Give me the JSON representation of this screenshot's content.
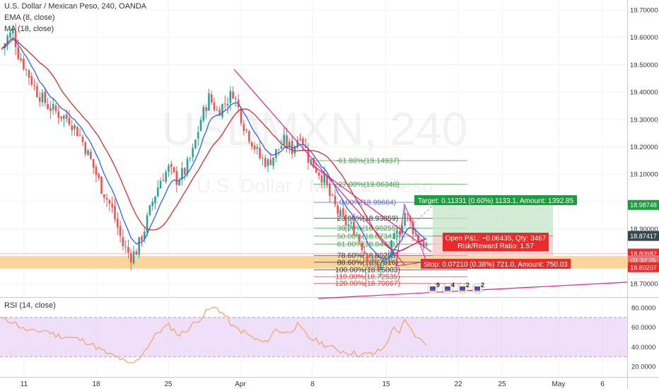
{
  "header": {
    "symbol": "U.S. Dollar / Mexican Peso, 240, OANDA",
    "ema": "EMA (8, close)",
    "ma": "MA (18, close)",
    "rsi": "RSI (14, close)"
  },
  "watermark": {
    "symbol": "USDMXN, 240",
    "name": "U.S. Dollar / Mexican Peso"
  },
  "colors": {
    "up": "#26a69a",
    "down": "#ef5350",
    "ema": "#2962ff",
    "ma": "#d32f2f",
    "trend": "#e91e8c",
    "zone": "#f9b346",
    "rsi": "#f5a263",
    "rsi_band": "#ead4f5",
    "target_box": "#c8e6c9",
    "stop_box": "#f8c7c7",
    "target_label": "#1b9e3e",
    "stop_label": "#e82c2c",
    "price_last": "#37474f"
  },
  "chart_data": {
    "type": "candlestick",
    "title": "U.S. Dollar / Mexican Peso, 240, OANDA",
    "price_axis": [
      19.7,
      19.6,
      19.5,
      19.4,
      19.3,
      19.2,
      19.1,
      19.0,
      18.9,
      18.8,
      18.7
    ],
    "price_axis_labels": [
      "19.70000",
      "19.60000",
      "19.50000",
      "19.40000",
      "19.30000",
      "19.20000",
      "19.10000",
      "",
      "18.90000",
      "",
      "18.70000"
    ],
    "ylim": [
      18.64,
      19.76
    ],
    "x_ticks": [
      "11",
      "18",
      "25",
      "Apr",
      "8",
      "15",
      "22",
      "25",
      "May",
      "6"
    ],
    "close_series_anchors": [
      [
        0,
        19.56
      ],
      [
        2,
        19.6
      ],
      [
        4,
        19.62
      ],
      [
        6,
        19.54
      ],
      [
        9,
        19.48
      ],
      [
        13,
        19.4
      ],
      [
        17,
        19.35
      ],
      [
        21,
        19.32
      ],
      [
        25,
        19.3
      ],
      [
        29,
        19.24
      ],
      [
        33,
        19.15
      ],
      [
        37,
        19.05
      ],
      [
        41,
        18.97
      ],
      [
        45,
        18.84
      ],
      [
        48,
        18.8
      ],
      [
        50,
        18.82
      ],
      [
        53,
        18.9
      ],
      [
        56,
        19.0
      ],
      [
        59,
        19.08
      ],
      [
        62,
        19.12
      ],
      [
        65,
        19.08
      ],
      [
        68,
        19.11
      ],
      [
        71,
        19.18
      ],
      [
        74,
        19.3
      ],
      [
        77,
        19.38
      ],
      [
        80,
        19.33
      ],
      [
        83,
        19.36
      ],
      [
        86,
        19.4
      ],
      [
        88,
        19.34
      ],
      [
        90,
        19.28
      ],
      [
        93,
        19.22
      ],
      [
        96,
        19.16
      ],
      [
        99,
        19.14
      ],
      [
        102,
        19.18
      ],
      [
        105,
        19.22
      ],
      [
        108,
        19.19
      ],
      [
        111,
        19.25
      ],
      [
        114,
        19.16
      ],
      [
        117,
        19.12
      ],
      [
        120,
        19.08
      ],
      [
        122,
        19.02
      ],
      [
        125,
        18.96
      ],
      [
        128,
        18.92
      ],
      [
        131,
        18.9
      ],
      [
        134,
        18.84
      ],
      [
        137,
        18.78
      ],
      [
        140,
        18.76
      ],
      [
        143,
        18.78
      ],
      [
        146,
        18.86
      ],
      [
        148,
        18.9
      ],
      [
        150,
        18.96
      ],
      [
        152,
        18.92
      ],
      [
        155,
        18.86
      ],
      [
        158,
        18.84
      ]
    ],
    "fib_levels": [
      {
        "label": "-61.80%(19.14937)",
        "value": 19.14937
      },
      {
        "label": "-27.00%(19.06348)",
        "value": 19.06348
      },
      {
        "label": "0.00%(18.99684)",
        "value": 18.99684
      },
      {
        "label": "23.60%(18.93859)",
        "value": 18.93859
      },
      {
        "label": "38.20%(18.90255)",
        "value": 18.90255
      },
      {
        "label": "50.00%(18.87343)",
        "value": 18.87343
      },
      {
        "label": "61.80%(18.84431)",
        "value": 18.84431
      },
      {
        "label": "78.60%(18.80285)",
        "value": 18.80285
      },
      {
        "label": "88.60%(18.77816)",
        "value": 18.77816
      },
      {
        "label": "100.00%(18.75003)",
        "value": 18.75003
      },
      {
        "label": "110.00%(18.72535)",
        "value": 18.72535
      },
      {
        "label": "120.00%(18.70067)",
        "value": 18.70067
      }
    ],
    "price_labels": [
      {
        "label": "18.98748",
        "value": 18.98748,
        "style": "target"
      },
      {
        "label": "18.87417",
        "value": 18.87417,
        "style": "last"
      },
      {
        "label": "18.80982",
        "value": 18.80982,
        "style": "stop"
      },
      {
        "label": "01:32:25",
        "value": 18.785,
        "style": "timer"
      },
      {
        "label": "18.80207",
        "value": 18.76,
        "style": "stop"
      }
    ],
    "position": {
      "target": "Target: 0.11331 (0.60%) 1133.1, Amount: 1392.85",
      "open": "Open P&L: −0.06435, Qty: 3467",
      "rr": "Risk/Reward Ratio: 1.57",
      "stop": "Stop: 0.07210 (0.38%) 721.0, Amount: 750.03",
      "target_price": 18.98748,
      "entry_price": 18.87417,
      "stop_price": 18.80207
    },
    "support_zone": [
      18.755,
      18.8
    ],
    "events": [
      "9",
      "4",
      "2",
      "2"
    ],
    "rsi": {
      "axis": [
        80,
        60,
        40,
        20
      ],
      "axis_labels": [
        "80.0000",
        "60.0000",
        "40.0000",
        "20.0000"
      ],
      "band": [
        30,
        70
      ],
      "ylim": [
        10,
        85
      ],
      "values_anchors": [
        [
          0,
          68
        ],
        [
          4,
          66
        ],
        [
          8,
          58
        ],
        [
          12,
          55
        ],
        [
          16,
          57
        ],
        [
          20,
          52
        ],
        [
          24,
          50
        ],
        [
          28,
          48
        ],
        [
          32,
          45
        ],
        [
          36,
          38
        ],
        [
          40,
          32
        ],
        [
          44,
          28
        ],
        [
          47,
          22
        ],
        [
          50,
          25
        ],
        [
          54,
          40
        ],
        [
          58,
          55
        ],
        [
          62,
          62
        ],
        [
          66,
          52
        ],
        [
          70,
          60
        ],
        [
          74,
          70
        ],
        [
          77,
          78
        ],
        [
          80,
          80
        ],
        [
          83,
          72
        ],
        [
          86,
          60
        ],
        [
          90,
          55
        ],
        [
          94,
          48
        ],
        [
          98,
          44
        ],
        [
          102,
          58
        ],
        [
          106,
          54
        ],
        [
          110,
          62
        ],
        [
          114,
          50
        ],
        [
          118,
          45
        ],
        [
          122,
          40
        ],
        [
          126,
          36
        ],
        [
          130,
          34
        ],
        [
          134,
          32
        ],
        [
          138,
          33
        ],
        [
          142,
          38
        ],
        [
          146,
          60
        ],
        [
          148,
          55
        ],
        [
          150,
          66
        ],
        [
          152,
          58
        ],
        [
          155,
          48
        ],
        [
          158,
          44
        ]
      ]
    }
  }
}
